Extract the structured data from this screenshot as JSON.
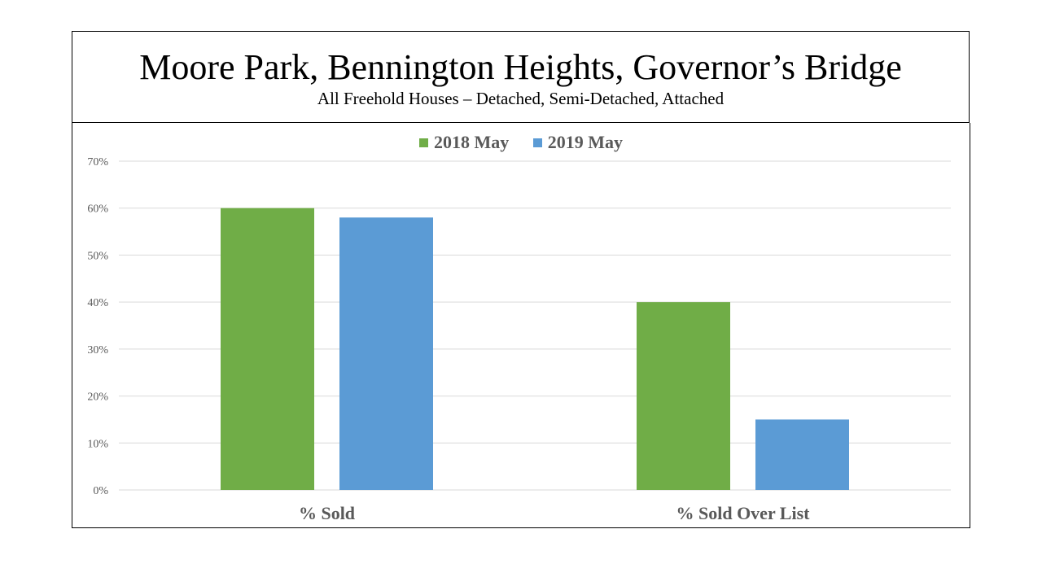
{
  "header": {
    "title": "Moore Park, Bennington Heights, Governor’s Bridge",
    "subtitle": "All Freehold Houses – Detached, Semi-Detached, Attached"
  },
  "colors": {
    "series_2018": "#70AD47",
    "series_2019": "#5B9BD5",
    "grid": "#D9D9D9",
    "axis_text": "#595959"
  },
  "chart_data": {
    "type": "bar",
    "categories": [
      "% Sold",
      "% Sold Over List"
    ],
    "series": [
      {
        "name": "2018 May",
        "values": [
          60,
          40
        ]
      },
      {
        "name": "2019 May",
        "values": [
          58,
          15
        ]
      }
    ],
    "y_ticks": [
      "0%",
      "10%",
      "20%",
      "30%",
      "40%",
      "50%",
      "60%",
      "70%"
    ],
    "ylim": [
      0,
      70
    ],
    "grid": true,
    "legend_position": "top"
  }
}
